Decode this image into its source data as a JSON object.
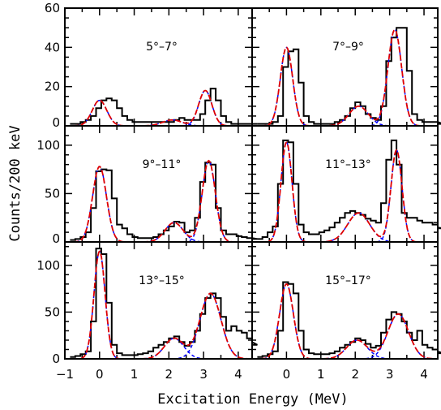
{
  "chart_data": {
    "type": "line",
    "xlabel": "Excitation Energy (MeV)",
    "ylabel": "Counts/200 keV",
    "xlim": [
      -1,
      4.4
    ],
    "x_ticks": [
      "−1",
      "0",
      "1",
      "2",
      "3",
      "4"
    ],
    "series_styles": [
      {
        "key": "histogram",
        "color": "#000000",
        "style": "solid step"
      },
      {
        "key": "total_fit",
        "color": "#e00000",
        "style": "solid"
      },
      {
        "key": "peak_fits",
        "color": "#0000ff",
        "style": "dashed"
      }
    ],
    "panels": [
      {
        "label": "5°–7°",
        "ylim": [
          0,
          60
        ],
        "y_ticks": [
          "0",
          "20",
          "40",
          "60"
        ],
        "peaks": [
          {
            "center": 0,
            "amp": 13,
            "sigma": 0.21
          },
          {
            "center": 2.1,
            "amp": 3,
            "sigma": 0.28
          },
          {
            "center": 3.05,
            "amp": 18,
            "sigma": 0.19
          }
        ],
        "histogram": [
          1,
          1,
          2,
          3,
          5,
          9,
          13,
          14,
          13,
          9,
          5,
          3,
          2,
          2,
          2,
          2,
          2,
          2,
          2,
          2,
          3,
          4,
          3,
          3,
          3,
          6,
          13,
          19,
          13,
          5,
          2,
          1,
          1,
          1,
          1,
          1,
          1
        ]
      },
      {
        "label": "7°–9°",
        "ylim": [
          0,
          60
        ],
        "y_ticks": [
          "0",
          "20",
          "40",
          "60"
        ],
        "peaks": [
          {
            "center": 0,
            "amp": 40,
            "sigma": 0.18
          },
          {
            "center": 2.1,
            "amp": 10,
            "sigma": 0.28
          },
          {
            "center": 3.15,
            "amp": 49,
            "sigma": 0.2
          }
        ],
        "histogram": [
          1,
          1,
          1,
          2,
          5,
          30,
          38,
          39,
          22,
          5,
          2,
          1,
          1,
          1,
          1,
          2,
          3,
          5,
          9,
          12,
          10,
          6,
          4,
          3,
          10,
          33,
          45,
          50,
          50,
          28,
          6,
          3,
          2,
          2,
          2,
          2,
          1
        ]
      },
      {
        "label": "9°–11°",
        "ylim": [
          0,
          120
        ],
        "y_ticks": [
          "0",
          "50",
          "100"
        ],
        "peaks": [
          {
            "center": 0,
            "amp": 78,
            "sigma": 0.2
          },
          {
            "center": 2.15,
            "amp": 20,
            "sigma": 0.26
          },
          {
            "center": 3.15,
            "amp": 84,
            "sigma": 0.19
          }
        ],
        "histogram": [
          2,
          3,
          5,
          10,
          35,
          73,
          75,
          74,
          45,
          18,
          14,
          8,
          5,
          4,
          4,
          4,
          5,
          8,
          12,
          16,
          21,
          20,
          10,
          12,
          25,
          62,
          82,
          80,
          35,
          12,
          8,
          8,
          6,
          5,
          4,
          4,
          3
        ]
      },
      {
        "label": "11°–13°",
        "ylim": [
          0,
          120
        ],
        "y_ticks": [
          "0",
          "50",
          "100"
        ],
        "peaks": [
          {
            "center": 0,
            "amp": 103,
            "sigma": 0.16
          },
          {
            "center": 2.1,
            "amp": 30,
            "sigma": 0.32
          },
          {
            "center": 3.2,
            "amp": 95,
            "sigma": 0.16
          }
        ],
        "histogram": [
          3,
          5,
          10,
          16,
          60,
          105,
          103,
          60,
          18,
          10,
          8,
          8,
          10,
          12,
          15,
          20,
          25,
          30,
          32,
          30,
          28,
          24,
          22,
          20,
          40,
          85,
          105,
          80,
          30,
          25,
          25,
          22,
          20,
          20,
          18,
          15,
          14
        ]
      },
      {
        "label": "13°–15°",
        "ylim": [
          0,
          125
        ],
        "y_ticks": [
          "0",
          "50",
          "100"
        ],
        "peaks": [
          {
            "center": 0,
            "amp": 115,
            "sigma": 0.16
          },
          {
            "center": 2.15,
            "amp": 22,
            "sigma": 0.28
          },
          {
            "center": 3.2,
            "amp": 70,
            "sigma": 0.3
          }
        ],
        "histogram": [
          2,
          3,
          5,
          8,
          40,
          118,
          112,
          60,
          15,
          6,
          4,
          4,
          4,
          5,
          6,
          8,
          12,
          15,
          18,
          22,
          24,
          18,
          14,
          18,
          30,
          48,
          65,
          70,
          65,
          45,
          30,
          35,
          30,
          28,
          22,
          18,
          15
        ]
      },
      {
        "label": "15°–17°",
        "ylim": [
          0,
          125
        ],
        "y_ticks": [
          "0",
          "50",
          "100"
        ],
        "peaks": [
          {
            "center": 0,
            "amp": 80,
            "sigma": 0.2
          },
          {
            "center": 2.05,
            "amp": 20,
            "sigma": 0.3
          },
          {
            "center": 3.25,
            "amp": 48,
            "sigma": 0.3
          }
        ],
        "histogram": [
          2,
          3,
          5,
          8,
          30,
          82,
          80,
          70,
          30,
          10,
          6,
          5,
          5,
          5,
          6,
          8,
          12,
          15,
          18,
          22,
          20,
          16,
          12,
          14,
          28,
          42,
          50,
          48,
          40,
          28,
          20,
          30,
          15,
          12,
          10,
          8,
          6
        ]
      }
    ]
  }
}
